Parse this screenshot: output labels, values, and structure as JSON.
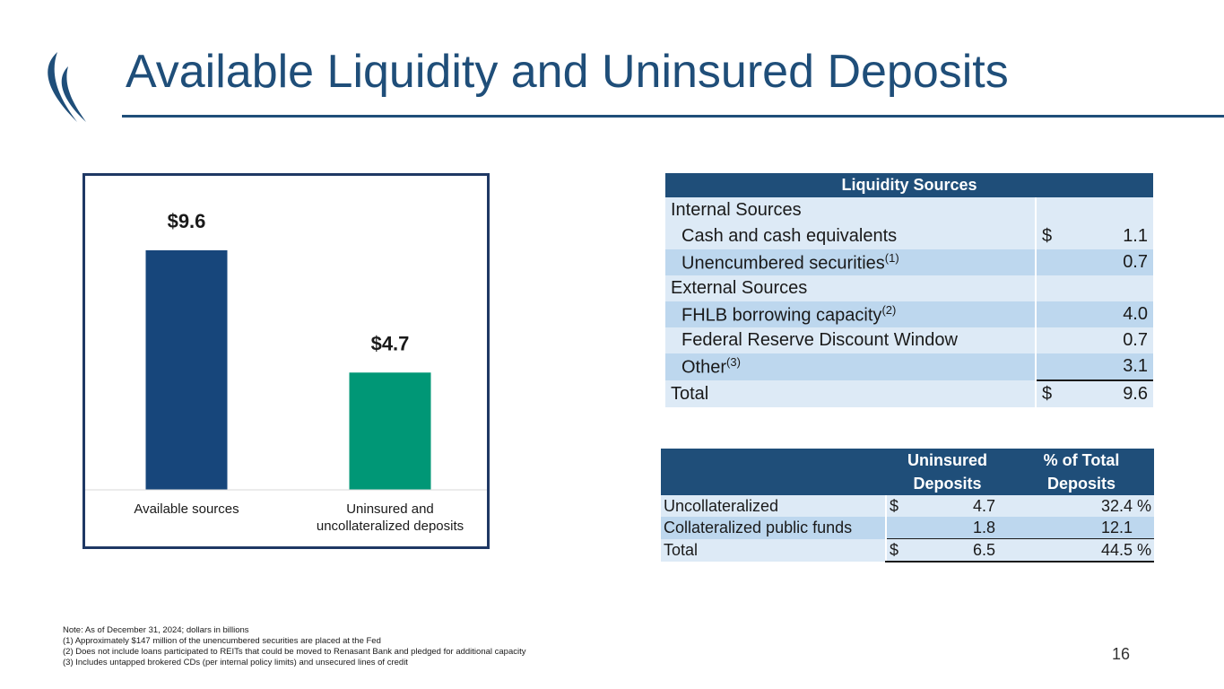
{
  "title": "Available Liquidity and Uninsured Deposits",
  "colors": {
    "navy": "#1f4e79",
    "bar_blue": "#17467b",
    "bar_green": "#009776"
  },
  "chart_data": {
    "type": "bar",
    "categories": [
      "Available sources",
      "Uninsured  and uncollateralized deposits"
    ],
    "category_lines": [
      [
        "Available sources"
      ],
      [
        "Uninsured  and",
        "uncollateralized deposits"
      ]
    ],
    "values": [
      9.6,
      4.7
    ],
    "data_labels": [
      "$9.6",
      "$4.7"
    ],
    "colors": [
      "#17467b",
      "#009776"
    ],
    "title": "",
    "xlabel": "",
    "ylabel": "",
    "ylim": [
      0,
      9.6
    ],
    "grid": false
  },
  "liquidity": {
    "header": "Liquidity Sources",
    "rows": [
      {
        "label": "Internal Sources",
        "sup": "",
        "dollar": "",
        "value": ""
      },
      {
        "label": "Cash and cash equivalents",
        "sup": "",
        "dollar": "$",
        "value": "1.1"
      },
      {
        "label": "Unencumbered securities",
        "sup": "(1)",
        "dollar": "",
        "value": "0.7"
      },
      {
        "label": "External Sources",
        "sup": "",
        "dollar": "",
        "value": ""
      },
      {
        "label": "FHLB borrowing capacity",
        "sup": "(2)",
        "dollar": "",
        "value": "4.0"
      },
      {
        "label": "Federal Reserve Discount Window",
        "sup": "",
        "dollar": "",
        "value": "0.7"
      },
      {
        "label": "Other",
        "sup": "(3)",
        "dollar": "",
        "value": "3.1"
      },
      {
        "label": "Total",
        "sup": "",
        "dollar": "$",
        "value": "9.6"
      }
    ]
  },
  "uninsured": {
    "headers": [
      "",
      "Uninsured Deposits",
      "% of Total Deposits"
    ],
    "header_lines": [
      [
        "Uninsured",
        "Deposits"
      ],
      [
        "% of Total",
        "Deposits"
      ]
    ],
    "rows": [
      {
        "label": "Uncollateralized",
        "dollar": "$",
        "value": "4.7",
        "pct": "32.4 %"
      },
      {
        "label": "Collateralized public funds",
        "dollar": "",
        "value": "1.8",
        "pct": "12.1"
      },
      {
        "label": "Total",
        "dollar": "$",
        "value": "6.5",
        "pct": "44.5 %"
      }
    ]
  },
  "notes": [
    "Note:  As of December 31, 2024; dollars in billions",
    "(1) Approximately $147 million of the unencumbered securities are placed at the Fed",
    "(2) Does not include loans participated to REITs that could be moved to Renasant Bank and pledged for additional capacity",
    "(3) Includes untapped brokered CDs (per internal policy limits) and unsecured lines of credit"
  ],
  "page_number": "16"
}
